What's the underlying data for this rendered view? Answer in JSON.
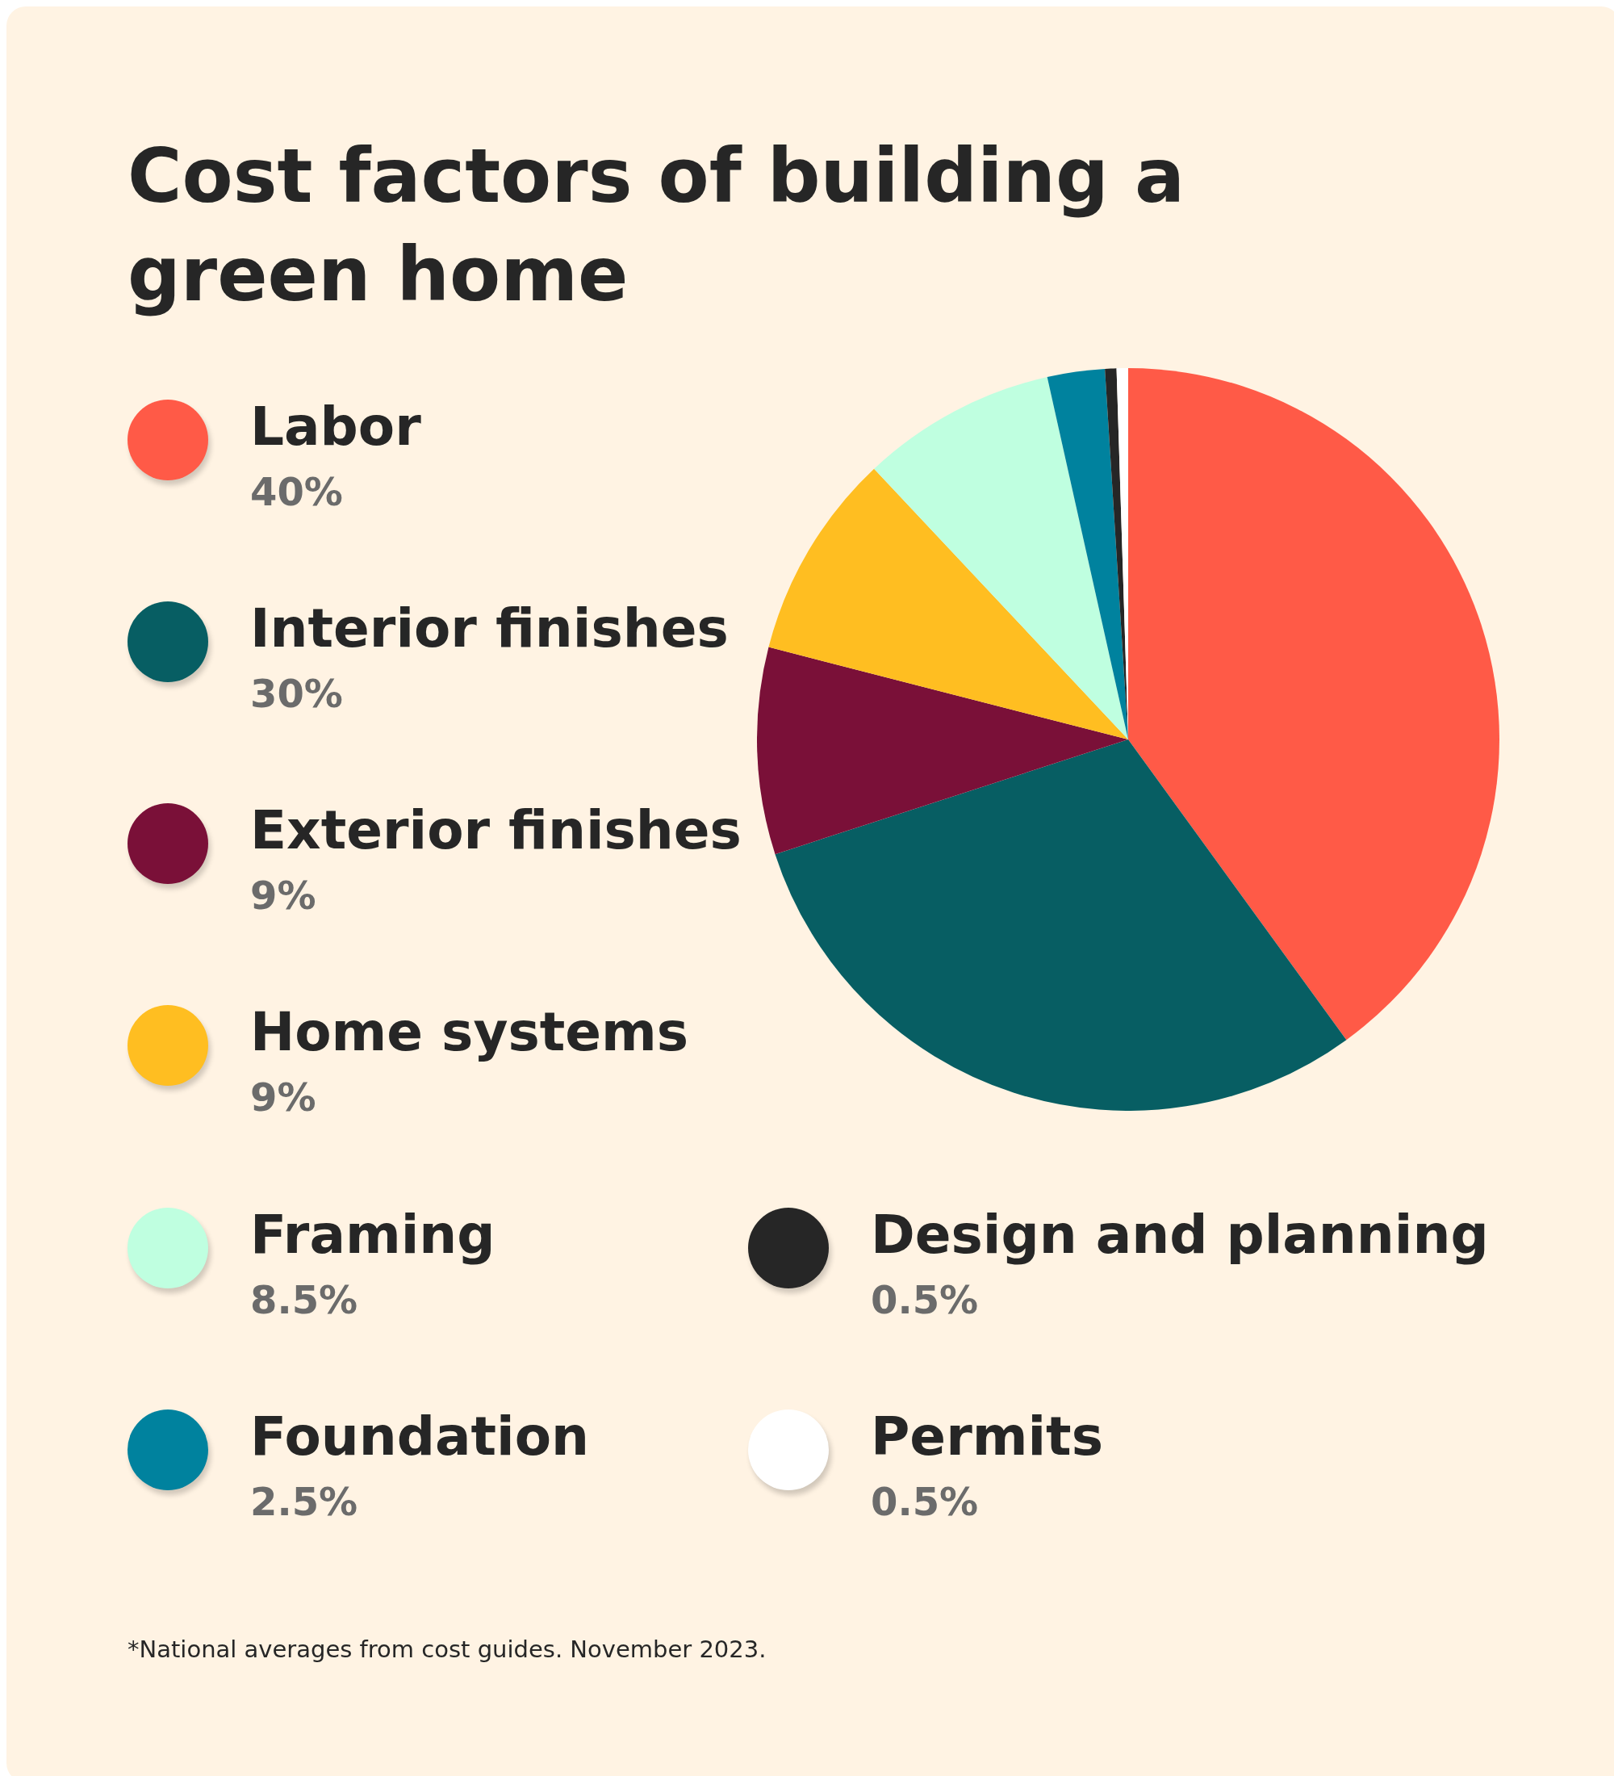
{
  "chart_data": {
    "type": "pie",
    "title": "Cost factors of building a green home",
    "categories": [
      "Labor",
      "Interior finishes",
      "Exterior finishes",
      "Home systems",
      "Framing",
      "Foundation",
      "Design and planning",
      "Permits"
    ],
    "values": [
      40,
      30,
      9,
      9,
      8.5,
      2.5,
      0.5,
      0.5
    ],
    "value_labels": [
      "40%",
      "30%",
      "9%",
      "9%",
      "8.5%",
      "2.5%",
      "0.5%",
      "0.5%"
    ],
    "colors": [
      "#ff5a47",
      "#075e63",
      "#7a1038",
      "#ffbe21",
      "#bfffe0",
      "#00829e",
      "#262626",
      "#ffffff"
    ],
    "legend": "left",
    "annotations": [
      "*National averages from cost guides. November 2023."
    ]
  }
}
